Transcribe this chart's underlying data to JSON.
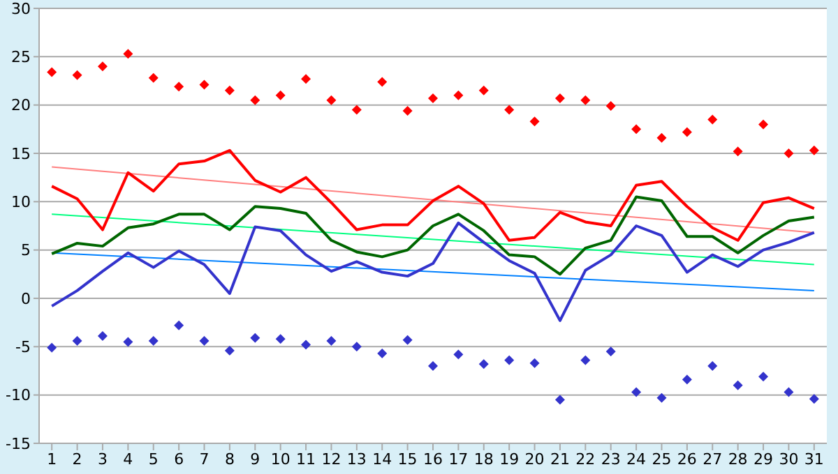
{
  "chart_data": {
    "type": "line",
    "x": [
      1,
      2,
      3,
      4,
      5,
      6,
      7,
      8,
      9,
      10,
      11,
      12,
      13,
      14,
      15,
      16,
      17,
      18,
      19,
      20,
      21,
      22,
      23,
      24,
      25,
      26,
      27,
      28,
      29,
      30,
      31
    ],
    "xlim": [
      0.5,
      31.5
    ],
    "xticks": [
      1,
      2,
      3,
      4,
      5,
      6,
      7,
      8,
      9,
      10,
      11,
      12,
      13,
      14,
      15,
      16,
      17,
      18,
      19,
      20,
      21,
      22,
      23,
      24,
      25,
      26,
      27,
      28,
      29,
      30,
      31
    ],
    "ylim": [
      -15,
      30
    ],
    "yticks": [
      -15,
      -10,
      -5,
      0,
      5,
      10,
      15,
      20,
      25,
      30
    ],
    "grid": "y",
    "line_style": "solid",
    "series": [
      {
        "color": "#ff8080",
        "values": [
          13.6,
          null,
          null,
          null,
          null,
          null,
          null,
          null,
          null,
          null,
          null,
          null,
          null,
          null,
          null,
          null,
          null,
          null,
          null,
          null,
          null,
          null,
          null,
          null,
          null,
          null,
          null,
          null,
          null,
          null,
          6.8
        ]
      },
      {
        "color": "#00ff80",
        "values": [
          8.7,
          null,
          null,
          null,
          null,
          null,
          null,
          null,
          null,
          null,
          null,
          null,
          null,
          null,
          null,
          null,
          null,
          null,
          null,
          null,
          null,
          null,
          null,
          null,
          null,
          null,
          null,
          null,
          null,
          null,
          3.5
        ]
      },
      {
        "color": "#0080ff",
        "values": [
          4.7,
          null,
          null,
          null,
          null,
          null,
          null,
          null,
          null,
          null,
          null,
          null,
          null,
          null,
          null,
          null,
          null,
          null,
          null,
          null,
          null,
          null,
          null,
          null,
          null,
          null,
          null,
          null,
          null,
          null,
          0.8
        ]
      },
      {
        "type": "scatter",
        "marker": "diamond",
        "color": "#ff0000",
        "values": [
          23.4,
          23.1,
          24.0,
          25.3,
          22.8,
          21.9,
          22.1,
          21.5,
          20.5,
          21.0,
          22.7,
          20.5,
          19.5,
          22.4,
          19.4,
          20.7,
          21.0,
          21.5,
          19.5,
          18.3,
          20.7,
          20.5,
          19.9,
          17.5,
          16.6,
          17.2,
          18.5,
          15.2,
          18.0,
          15.0,
          15.3
        ]
      },
      {
        "type": "scatter",
        "marker": "diamond",
        "color": "#3333cc",
        "values": [
          -5.1,
          -4.4,
          -3.9,
          -4.5,
          -4.4,
          -2.8,
          -4.4,
          -5.4,
          -4.1,
          -4.2,
          -4.8,
          -4.4,
          -5.0,
          -5.7,
          -4.3,
          -7.0,
          -5.8,
          -6.8,
          -6.4,
          -6.7,
          -10.5,
          -6.4,
          -5.5,
          -9.7,
          -10.3,
          -8.4,
          -7.0,
          -9.0,
          -8.1,
          -9.7,
          -10.4
        ]
      },
      {
        "color": "#ff0000",
        "values": [
          11.6,
          10.3,
          7.1,
          13.0,
          11.1,
          13.9,
          14.2,
          15.3,
          12.2,
          11.0,
          12.5,
          9.9,
          7.1,
          7.6,
          7.6,
          10.1,
          11.6,
          9.8,
          6.0,
          6.3,
          8.9,
          7.9,
          7.5,
          11.7,
          12.1,
          9.5,
          7.3,
          6.0,
          9.9,
          10.4,
          9.3
        ]
      },
      {
        "color": "#006600",
        "values": [
          4.6,
          5.7,
          5.4,
          7.3,
          7.7,
          8.7,
          8.7,
          7.1,
          9.5,
          9.3,
          8.8,
          6.0,
          4.8,
          4.3,
          5.0,
          7.5,
          8.7,
          7.0,
          4.5,
          4.3,
          2.5,
          5.2,
          6.0,
          10.5,
          10.1,
          6.4,
          6.4,
          4.7,
          6.5,
          8.0,
          8.4
        ]
      },
      {
        "color": "#3333cc",
        "values": [
          -0.8,
          0.8,
          2.8,
          4.7,
          3.2,
          4.9,
          3.5,
          0.5,
          7.4,
          7.0,
          4.5,
          2.8,
          3.8,
          2.7,
          2.3,
          3.6,
          7.8,
          5.8,
          3.9,
          2.6,
          -2.3,
          2.9,
          4.5,
          7.5,
          6.5,
          2.7,
          4.5,
          3.3,
          5.0,
          5.8,
          6.8
        ]
      }
    ]
  }
}
